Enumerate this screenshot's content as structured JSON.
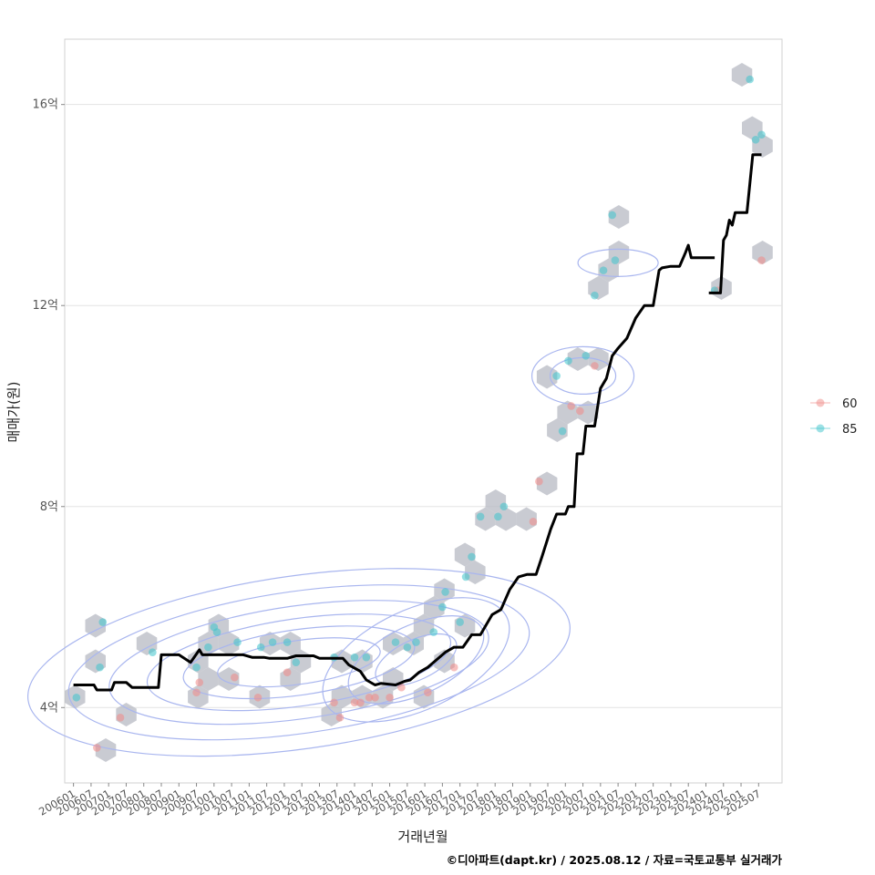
{
  "chart_data": {
    "type": "scatter",
    "xlabel": "거래년월",
    "ylabel": "매매가(원)",
    "caption": "©디아파트(dapt.kr) / 2025.08.12 / 자료=국토교통부 실거래가",
    "x_range": [
      "2005-10",
      "2026-03"
    ],
    "ylim": [
      2.5,
      17.3
    ],
    "y_unit": "억",
    "y_ticks": [
      {
        "value": 4,
        "label": "4억"
      },
      {
        "value": 8,
        "label": "8억"
      },
      {
        "value": 12,
        "label": "12억"
      },
      {
        "value": 16,
        "label": "16억"
      }
    ],
    "x_ticks": [
      "200601",
      "200607",
      "200701",
      "200707",
      "200801",
      "200807",
      "200901",
      "200907",
      "201001",
      "201007",
      "201101",
      "201107",
      "201201",
      "201207",
      "201301",
      "201307",
      "201401",
      "201407",
      "201501",
      "201507",
      "201601",
      "201607",
      "201701",
      "201707",
      "201801",
      "201807",
      "201901",
      "201907",
      "202001",
      "202007",
      "202101",
      "202107",
      "202201",
      "202207",
      "202301",
      "202307",
      "202401",
      "202407",
      "202501",
      "202507"
    ],
    "grid": true,
    "legend_position": "right",
    "colors": {
      "s60": "#f08a86",
      "s85": "#3ec4cc",
      "median": "#000000",
      "hex": "#b7bac3",
      "contour": "#a9b6ef"
    },
    "series": [
      {
        "name": "60",
        "points": [
          [
            "2006-09",
            3.2
          ],
          [
            "2007-05",
            3.8
          ],
          [
            "2009-07",
            4.3
          ],
          [
            "2009-08",
            4.5
          ],
          [
            "2010-08",
            4.6
          ],
          [
            "2011-04",
            4.2
          ],
          [
            "2012-02",
            4.7
          ],
          [
            "2013-06",
            4.1
          ],
          [
            "2013-08",
            3.8
          ],
          [
            "2014-01",
            4.1
          ],
          [
            "2014-03",
            4.1
          ],
          [
            "2014-06",
            4.2
          ],
          [
            "2014-08",
            4.2
          ],
          [
            "2015-01",
            4.2
          ],
          [
            "2015-05",
            4.4
          ],
          [
            "2016-02",
            4.3
          ],
          [
            "2016-11",
            4.8
          ],
          [
            "2019-02",
            7.7
          ],
          [
            "2019-04",
            8.5
          ],
          [
            "2020-03",
            10.0
          ],
          [
            "2020-06",
            9.9
          ],
          [
            "2020-11",
            10.8
          ],
          [
            "2024-05",
            12.3
          ],
          [
            "2025-08",
            12.9
          ]
        ]
      },
      {
        "name": "85",
        "points": [
          [
            "2006-02",
            4.2
          ],
          [
            "2006-10",
            4.8
          ],
          [
            "2006-11",
            5.7
          ],
          [
            "2008-04",
            5.1
          ],
          [
            "2009-07",
            4.8
          ],
          [
            "2009-11",
            5.2
          ],
          [
            "2010-01",
            5.6
          ],
          [
            "2010-02",
            5.5
          ],
          [
            "2010-09",
            5.3
          ],
          [
            "2011-05",
            5.2
          ],
          [
            "2011-09",
            5.3
          ],
          [
            "2012-02",
            5.3
          ],
          [
            "2012-05",
            4.9
          ],
          [
            "2013-06",
            5.0
          ],
          [
            "2014-01",
            5.0
          ],
          [
            "2014-05",
            5.0
          ],
          [
            "2015-03",
            5.3
          ],
          [
            "2015-07",
            5.2
          ],
          [
            "2015-10",
            5.3
          ],
          [
            "2016-04",
            5.5
          ],
          [
            "2016-07",
            6.0
          ],
          [
            "2016-08",
            6.3
          ],
          [
            "2017-01",
            5.7
          ],
          [
            "2017-03",
            6.6
          ],
          [
            "2017-05",
            7.0
          ],
          [
            "2017-08",
            7.8
          ],
          [
            "2018-02",
            7.8
          ],
          [
            "2018-04",
            8.0
          ],
          [
            "2019-10",
            10.6
          ],
          [
            "2019-12",
            9.5
          ],
          [
            "2020-02",
            10.9
          ],
          [
            "2020-08",
            11.0
          ],
          [
            "2020-11",
            12.2
          ],
          [
            "2021-02",
            12.7
          ],
          [
            "2021-06",
            12.9
          ],
          [
            "2021-05",
            13.8
          ],
          [
            "2024-04",
            12.3
          ],
          [
            "2025-04",
            16.5
          ],
          [
            "2025-06",
            15.3
          ],
          [
            "2025-08",
            15.4
          ]
        ]
      },
      {
        "name": "median",
        "line": [
          [
            "2006-01",
            4.45
          ],
          [
            "2006-08",
            4.45
          ],
          [
            "2006-09",
            4.35
          ],
          [
            "2007-02",
            4.35
          ],
          [
            "2007-03",
            4.5
          ],
          [
            "2007-07",
            4.5
          ],
          [
            "2007-09",
            4.4
          ],
          [
            "2008-06",
            4.4
          ],
          [
            "2008-07",
            5.05
          ],
          [
            "2009-01",
            5.05
          ],
          [
            "2009-05",
            4.9
          ],
          [
            "2009-08",
            5.15
          ],
          [
            "2009-09",
            5.05
          ],
          [
            "2010-11",
            5.05
          ],
          [
            "2011-02",
            5.0
          ],
          [
            "2011-06",
            5.0
          ],
          [
            "2011-08",
            4.98
          ],
          [
            "2012-02",
            4.98
          ],
          [
            "2012-05",
            5.03
          ],
          [
            "2012-11",
            5.03
          ],
          [
            "2013-01",
            4.98
          ],
          [
            "2013-09",
            4.98
          ],
          [
            "2013-11",
            4.85
          ],
          [
            "2014-03",
            4.72
          ],
          [
            "2014-05",
            4.55
          ],
          [
            "2014-08",
            4.45
          ],
          [
            "2014-10",
            4.48
          ],
          [
            "2015-03",
            4.45
          ],
          [
            "2015-06",
            4.52
          ],
          [
            "2015-08",
            4.55
          ],
          [
            "2015-11",
            4.7
          ],
          [
            "2016-02",
            4.8
          ],
          [
            "2016-05",
            4.95
          ],
          [
            "2016-08",
            5.1
          ],
          [
            "2016-11",
            5.2
          ],
          [
            "2017-02",
            5.2
          ],
          [
            "2017-05",
            5.45
          ],
          [
            "2017-08",
            5.45
          ],
          [
            "2017-10",
            5.65
          ],
          [
            "2017-12",
            5.85
          ],
          [
            "2018-03",
            5.95
          ],
          [
            "2018-06",
            6.35
          ],
          [
            "2018-09",
            6.6
          ],
          [
            "2018-12",
            6.65
          ],
          [
            "2019-03",
            6.65
          ],
          [
            "2019-05",
            7.0
          ],
          [
            "2019-08",
            7.55
          ],
          [
            "2019-10",
            7.85
          ],
          [
            "2020-01",
            7.85
          ],
          [
            "2020-02",
            8.0
          ],
          [
            "2020-04",
            8.0
          ],
          [
            "2020-05",
            9.05
          ],
          [
            "2020-07",
            9.05
          ],
          [
            "2020-08",
            9.6
          ],
          [
            "2020-11",
            9.6
          ],
          [
            "2021-01",
            10.35
          ],
          [
            "2021-03",
            10.55
          ],
          [
            "2021-05",
            11.0
          ],
          [
            "2021-07",
            11.15
          ],
          [
            "2021-10",
            11.35
          ],
          [
            "2022-01",
            11.75
          ],
          [
            "2022-04",
            12.0
          ],
          [
            "2022-07",
            12.0
          ],
          [
            "2022-09",
            12.7
          ],
          [
            "2022-10",
            12.75
          ],
          [
            "2023-01",
            12.78
          ],
          [
            "2023-04",
            12.78
          ],
          [
            "2023-06",
            13.05
          ],
          [
            "2023-07",
            13.2
          ],
          [
            "2023-08",
            12.95
          ],
          [
            "2023-10",
            12.95
          ],
          [
            "2024-02",
            12.95
          ],
          [
            "2024-04",
            12.95
          ]
        ]
      },
      {
        "name": "median2",
        "line": [
          [
            "2024-02",
            12.25
          ],
          [
            "2024-06",
            12.25
          ],
          [
            "2024-07",
            13.3
          ],
          [
            "2024-08",
            13.4
          ],
          [
            "2024-09",
            13.7
          ],
          [
            "2024-10",
            13.6
          ],
          [
            "2024-11",
            13.85
          ],
          [
            "2025-03",
            13.85
          ],
          [
            "2025-05",
            15.0
          ],
          [
            "2025-08",
            15.0
          ]
        ]
      }
    ]
  }
}
